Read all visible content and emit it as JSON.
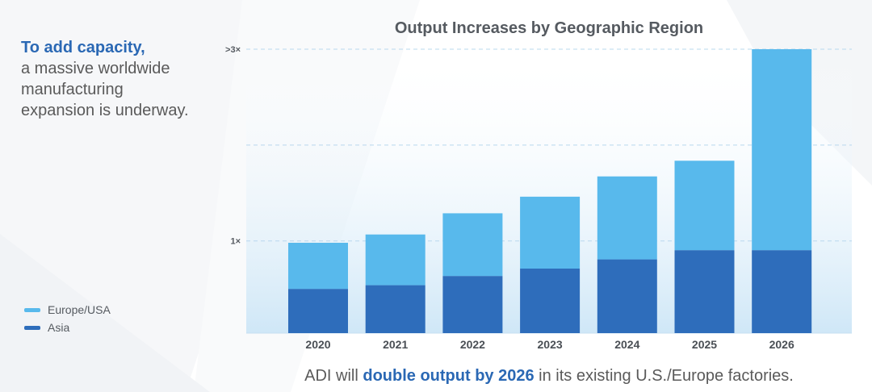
{
  "intro": {
    "heading": "To add capacity,",
    "body_lines": [
      "a massive worldwide",
      "manufacturing",
      "expansion is underway."
    ]
  },
  "legend": {
    "items": [
      {
        "label": "Europe/USA",
        "color": "#58b9ec"
      },
      {
        "label": "Asia",
        "color": "#2e6dbb"
      }
    ]
  },
  "footer": {
    "prefix": "ADI will ",
    "highlight": "double output by 2026",
    "suffix": " in its existing U.S./Europe factories."
  },
  "chart_data": {
    "type": "bar",
    "stacked": true,
    "title": "Output Increases by Geographic Region",
    "categories": [
      "2020",
      "2021",
      "2022",
      "2023",
      "2024",
      "2025",
      "2026"
    ],
    "series": [
      {
        "name": "Asia",
        "color": "#2e6dbb",
        "values": [
          0.48,
          0.52,
          0.62,
          0.7,
          0.8,
          0.9,
          0.9
        ]
      },
      {
        "name": "Europe/USA",
        "color": "#58b9ec",
        "values": [
          0.5,
          0.55,
          0.68,
          0.78,
          0.9,
          0.97,
          2.18
        ]
      }
    ],
    "yticks": [
      {
        "value": 1,
        "label": "1×"
      },
      {
        "value": 3.08,
        "label": ">3×"
      }
    ],
    "ylim": [
      0,
      3.08
    ],
    "grid": true,
    "legend_position": "bottom-left"
  }
}
